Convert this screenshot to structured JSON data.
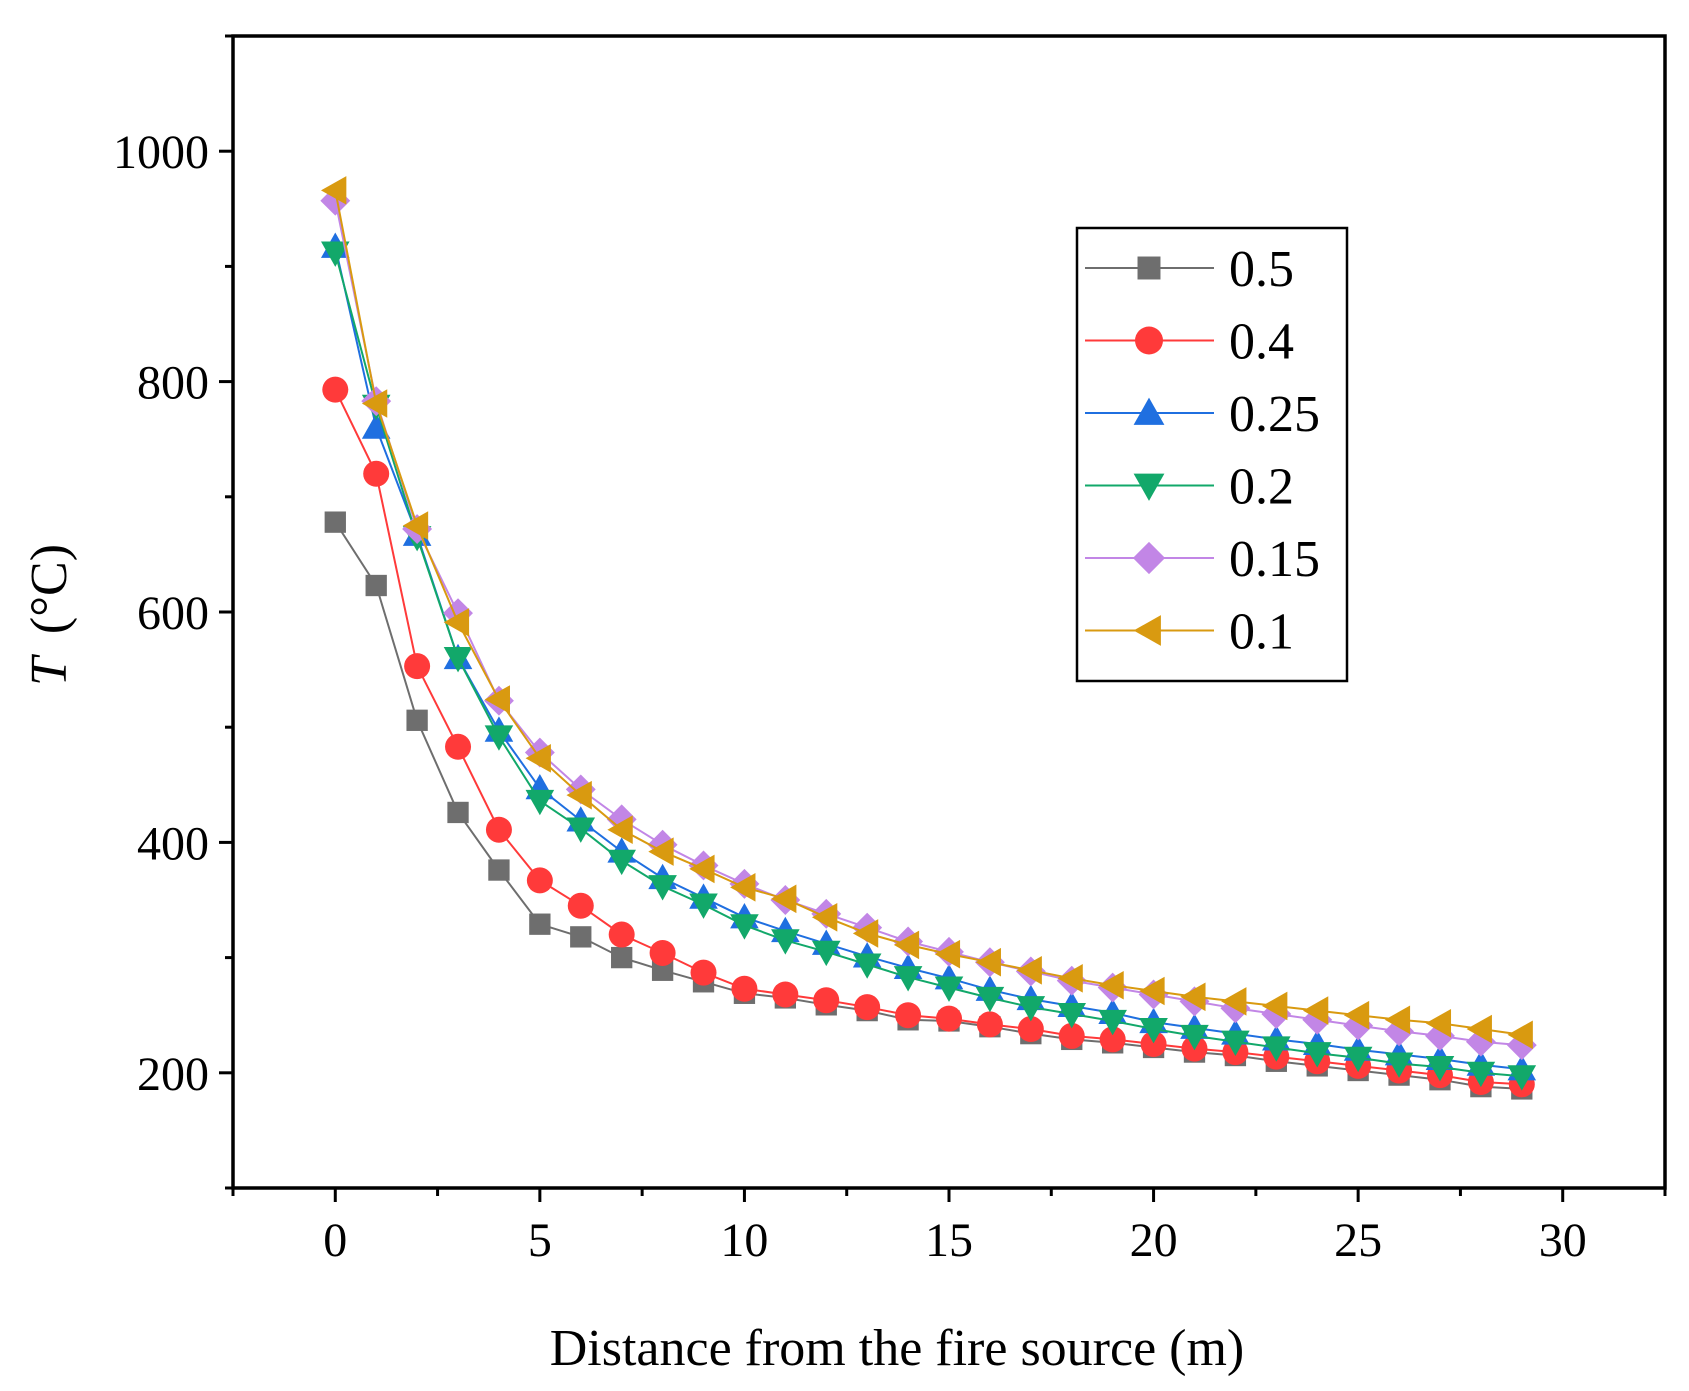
{
  "chart_data": {
    "type": "line",
    "title": "",
    "xlabel": "Distance from the fire source (m)",
    "ylabel_italic": "T",
    "ylabel_unit": "(°C)",
    "xlim": [
      -2.5,
      32.5
    ],
    "ylim": [
      100,
      1100
    ],
    "xticks": [
      0,
      5,
      10,
      15,
      20,
      25,
      30
    ],
    "yticks": [
      200,
      400,
      600,
      800,
      1000
    ],
    "legend_position": "top-right",
    "x": [
      0,
      1,
      2,
      3,
      4,
      5,
      6,
      7,
      8,
      9,
      10,
      11,
      12,
      13,
      14,
      15,
      16,
      17,
      18,
      19,
      20,
      21,
      22,
      23,
      24,
      25,
      26,
      27,
      28,
      29
    ],
    "series": [
      {
        "name": "0.5",
        "marker": "square",
        "color": "#6e6e6e",
        "values": [
          678,
          623,
          506,
          426,
          376,
          329,
          318,
          300,
          289,
          279,
          269,
          265,
          259,
          254,
          246,
          245,
          240,
          234,
          229,
          226,
          222,
          218,
          215,
          210,
          206,
          202,
          198,
          194,
          188,
          186
        ]
      },
      {
        "name": "0.4",
        "marker": "circle",
        "color": "#ff3a3a",
        "values": [
          793,
          720,
          553,
          483,
          411,
          367,
          345,
          320,
          304,
          287,
          273,
          268,
          263,
          257,
          250,
          247,
          242,
          238,
          232,
          229,
          225,
          221,
          218,
          214,
          210,
          206,
          202,
          198,
          192,
          190
        ]
      },
      {
        "name": "0.25",
        "marker": "triangle-up",
        "color": "#1f6fe0",
        "values": [
          917,
          760,
          667,
          560,
          497,
          447,
          419,
          392,
          369,
          352,
          335,
          323,
          312,
          301,
          291,
          282,
          272,
          264,
          258,
          252,
          244,
          239,
          234,
          229,
          225,
          220,
          216,
          212,
          207,
          203
        ]
      },
      {
        "name": "0.2",
        "marker": "triangle-down",
        "color": "#12a86a",
        "values": [
          912,
          779,
          665,
          560,
          492,
          436,
          412,
          384,
          362,
          346,
          328,
          315,
          305,
          294,
          283,
          274,
          265,
          257,
          251,
          245,
          238,
          232,
          227,
          222,
          217,
          213,
          208,
          205,
          200,
          197
        ]
      },
      {
        "name": "0.15",
        "marker": "diamond",
        "color": "#c286e6",
        "values": [
          957,
          783,
          672,
          599,
          523,
          478,
          446,
          420,
          398,
          380,
          364,
          350,
          338,
          326,
          314,
          305,
          296,
          288,
          280,
          274,
          268,
          262,
          256,
          251,
          246,
          241,
          236,
          232,
          227,
          224
        ]
      },
      {
        "name": "0.1",
        "marker": "triangle-left",
        "color": "#d99a10",
        "values": [
          966,
          781,
          675,
          591,
          524,
          473,
          441,
          411,
          392,
          377,
          361,
          351,
          335,
          321,
          311,
          303,
          296,
          289,
          282,
          276,
          271,
          266,
          262,
          258,
          254,
          250,
          246,
          243,
          238,
          233
        ]
      }
    ]
  }
}
